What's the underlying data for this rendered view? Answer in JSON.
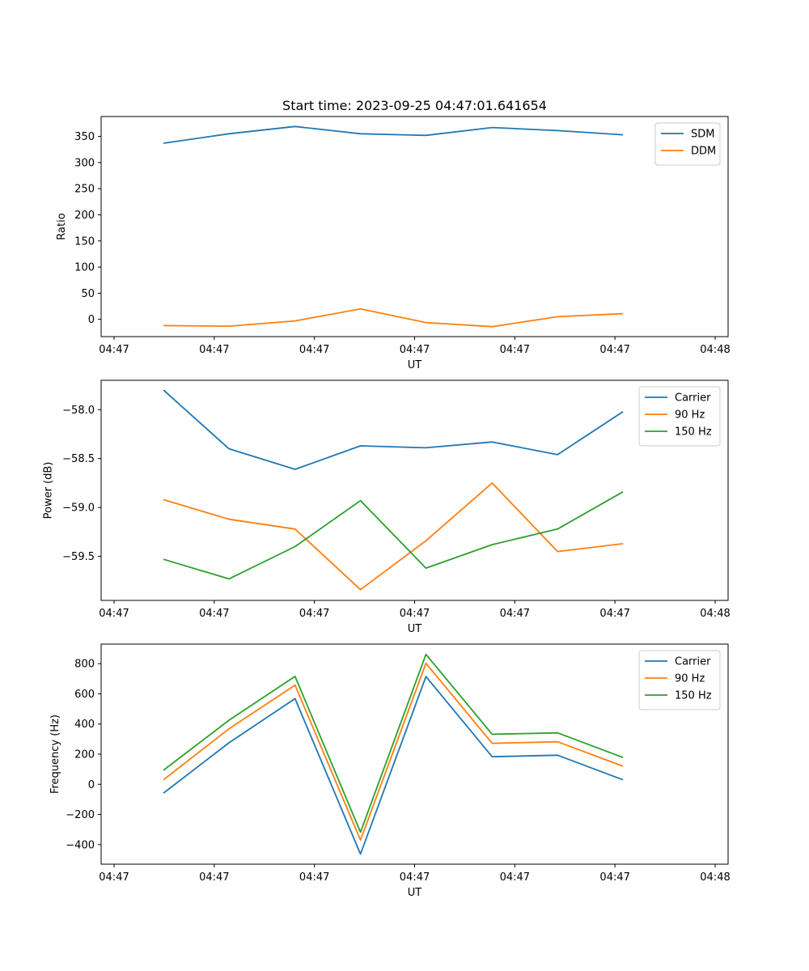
{
  "chart_data": [
    {
      "type": "line",
      "title": "Start time: 2023-09-25 04:47:01.641654",
      "xlabel": "UT",
      "ylabel": "Ratio",
      "xlim": [
        0,
        9
      ],
      "xticks": [
        {
          "x": 0,
          "label": "04:47"
        },
        {
          "x": 1.5,
          "label": "04:47"
        },
        {
          "x": 3,
          "label": "04:47"
        },
        {
          "x": 4.5,
          "label": "04:47"
        },
        {
          "x": 6,
          "label": "04:47"
        },
        {
          "x": 7.5,
          "label": "04:47"
        },
        {
          "x": 9,
          "label": "04:48"
        }
      ],
      "ylim": [
        -33,
        388
      ],
      "yticks": [
        0,
        50,
        100,
        150,
        200,
        250,
        300,
        350
      ],
      "ytick_labels": [
        "0",
        "50",
        "100",
        "150",
        "200",
        "250",
        "300",
        "350"
      ],
      "x": [
        0.74,
        1.72,
        2.71,
        3.69,
        4.67,
        5.66,
        6.64,
        7.62
      ],
      "series": [
        {
          "name": "SDM",
          "color": "#1f77b4",
          "values": [
            337,
            355,
            369,
            355,
            352,
            367,
            361,
            353
          ]
        },
        {
          "name": "DDM",
          "color": "#ff7f0e",
          "values": [
            -12,
            -13,
            -3,
            20,
            -6,
            -14,
            5,
            11
          ]
        }
      ],
      "legend_position": "top-right"
    },
    {
      "type": "line",
      "title": "",
      "xlabel": "UT",
      "ylabel": "Power (dB)",
      "xlim": [
        0,
        9
      ],
      "xticks": [
        {
          "x": 0,
          "label": "04:47"
        },
        {
          "x": 1.5,
          "label": "04:47"
        },
        {
          "x": 3,
          "label": "04:47"
        },
        {
          "x": 4.5,
          "label": "04:47"
        },
        {
          "x": 6,
          "label": "04:47"
        },
        {
          "x": 7.5,
          "label": "04:47"
        },
        {
          "x": 9,
          "label": "04:48"
        }
      ],
      "ylim": [
        -59.95,
        -57.7
      ],
      "yticks": [
        -59.5,
        -59.0,
        -58.5,
        -58.0
      ],
      "ytick_labels": [
        "−59.5",
        "−59.0",
        "−58.5",
        "−58.0"
      ],
      "x": [
        0.74,
        1.72,
        2.71,
        3.69,
        4.67,
        5.66,
        6.64,
        7.62
      ],
      "series": [
        {
          "name": "Carrier",
          "color": "#1f77b4",
          "values": [
            -57.8,
            -58.4,
            -58.61,
            -58.37,
            -58.39,
            -58.33,
            -58.46,
            -58.02
          ]
        },
        {
          "name": "90 Hz",
          "color": "#ff7f0e",
          "values": [
            -58.92,
            -59.12,
            -59.22,
            -59.84,
            -59.34,
            -58.75,
            -59.45,
            -59.37
          ]
        },
        {
          "name": "150 Hz",
          "color": "#2ca02c",
          "values": [
            -59.53,
            -59.73,
            -59.4,
            -58.93,
            -59.62,
            -59.38,
            -59.22,
            -58.84
          ]
        }
      ],
      "legend_position": "top-right"
    },
    {
      "type": "line",
      "title": "",
      "xlabel": "UT",
      "ylabel": "Frequency (Hz)",
      "xlim": [
        0,
        9
      ],
      "xticks": [
        {
          "x": 0,
          "label": "04:47"
        },
        {
          "x": 1.5,
          "label": "04:47"
        },
        {
          "x": 3,
          "label": "04:47"
        },
        {
          "x": 4.5,
          "label": "04:47"
        },
        {
          "x": 6,
          "label": "04:47"
        },
        {
          "x": 7.5,
          "label": "04:47"
        },
        {
          "x": 9,
          "label": "04:48"
        }
      ],
      "ylim": [
        -530,
        930
      ],
      "yticks": [
        -400,
        -200,
        0,
        200,
        400,
        600,
        800
      ],
      "ytick_labels": [
        "−400",
        "−200",
        "0",
        "200",
        "400",
        "600",
        "800"
      ],
      "x": [
        0.74,
        1.72,
        2.71,
        3.69,
        4.67,
        5.66,
        6.64,
        7.62
      ],
      "series": [
        {
          "name": "Carrier",
          "color": "#1f77b4",
          "values": [
            -58,
            275,
            568,
            -463,
            715,
            183,
            193,
            30
          ]
        },
        {
          "name": "90 Hz",
          "color": "#ff7f0e",
          "values": [
            30,
            368,
            658,
            -370,
            803,
            272,
            282,
            120
          ]
        },
        {
          "name": "150 Hz",
          "color": "#2ca02c",
          "values": [
            93,
            425,
            716,
            -318,
            862,
            332,
            341,
            178
          ]
        }
      ],
      "legend_position": "top-right"
    }
  ]
}
